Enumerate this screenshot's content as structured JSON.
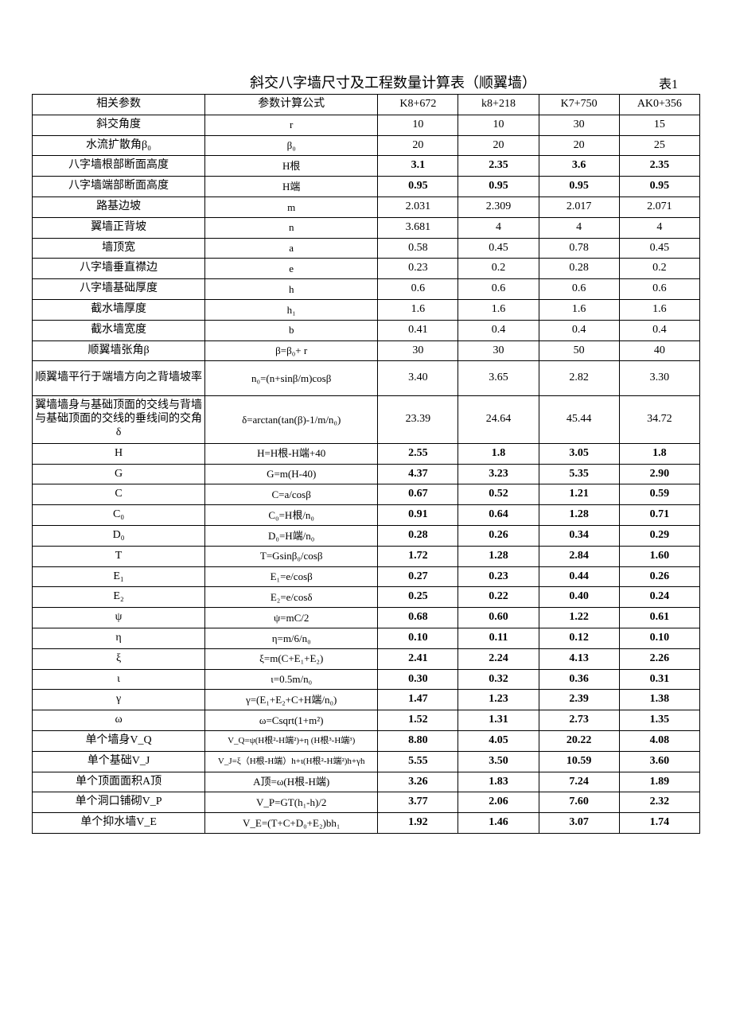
{
  "title": "斜交八字墙尺寸及工程数量计算表（顺翼墙）",
  "tableLabel": "表1",
  "header": {
    "c0": "相关参数",
    "c1": "参数计算公式",
    "c2": "K8+672",
    "c3": "k8+218",
    "c4": "K7+750",
    "c5": "AK0+356"
  },
  "rows": [
    {
      "p": "斜交角度",
      "f": "r",
      "v": [
        "10",
        "10",
        "30",
        "15"
      ],
      "bold": false
    },
    {
      "p": "水流扩散角β₀",
      "f": "β₀",
      "v": [
        "20",
        "20",
        "20",
        "25"
      ],
      "bold": false
    },
    {
      "p": "八字墙根部断面高度",
      "f": "H根",
      "v": [
        "3.1",
        "2.35",
        "3.6",
        "2.35"
      ],
      "bold": true
    },
    {
      "p": "八字墙端部断面高度",
      "f": "H端",
      "v": [
        "0.95",
        "0.95",
        "0.95",
        "0.95"
      ],
      "bold": true
    },
    {
      "p": "路基边坡",
      "f": "m",
      "v": [
        "2.031",
        "2.309",
        "2.017",
        "2.071"
      ],
      "bold": false
    },
    {
      "p": "翼墙正背坡",
      "f": "n",
      "v": [
        "3.681",
        "4",
        "4",
        "4"
      ],
      "bold": false
    },
    {
      "p": "墙顶宽",
      "f": "a",
      "v": [
        "0.58",
        "0.45",
        "0.78",
        "0.45"
      ],
      "bold": false
    },
    {
      "p": "八字墙垂直襟边",
      "f": "e",
      "v": [
        "0.23",
        "0.2",
        "0.28",
        "0.2"
      ],
      "bold": false
    },
    {
      "p": "八字墙基础厚度",
      "f": "h",
      "v": [
        "0.6",
        "0.6",
        "0.6",
        "0.6"
      ],
      "bold": false
    },
    {
      "p": "截水墙厚度",
      "f": "h₁",
      "v": [
        "1.6",
        "1.6",
        "1.6",
        "1.6"
      ],
      "bold": false
    },
    {
      "p": "截水墙宽度",
      "f": "b",
      "v": [
        "0.41",
        "0.4",
        "0.4",
        "0.4"
      ],
      "bold": false
    },
    {
      "p": "顺翼墙张角β",
      "f": "β=β₀+ r",
      "v": [
        "30",
        "30",
        "50",
        "40"
      ],
      "bold": false
    },
    {
      "p": "顺翼墙平行于端墙方向之背墙坡率",
      "f": "n₀=(n+sinβ/m)cosβ",
      "v": [
        "3.40",
        "3.65",
        "2.82",
        "3.30"
      ],
      "bold": false,
      "h": "tall"
    },
    {
      "p": "翼墙墙身与基础顶面的交线与背墙与基础顶面的交线的垂线间的交角δ",
      "f": "δ=arctan(tan(β)-1/m/n₀)",
      "v": [
        "23.39",
        "24.64",
        "45.44",
        "34.72"
      ],
      "bold": false,
      "h": "xtall"
    },
    {
      "p": "H",
      "f": "H=H根-H端+40",
      "v": [
        "2.55",
        "1.8",
        "3.05",
        "1.8"
      ],
      "bold": true
    },
    {
      "p": "G",
      "f": "G=m(H-40)",
      "v": [
        "4.37",
        "3.23",
        "5.35",
        "2.90"
      ],
      "bold": true
    },
    {
      "p": "C",
      "f": "C=a/cosβ",
      "v": [
        "0.67",
        "0.52",
        "1.21",
        "0.59"
      ],
      "bold": true
    },
    {
      "p": "C₀",
      "f": "C₀=H根/n₀",
      "v": [
        "0.91",
        "0.64",
        "1.28",
        "0.71"
      ],
      "bold": true
    },
    {
      "p": "D₀",
      "f": "D₀=H端/n₀",
      "v": [
        "0.28",
        "0.26",
        "0.34",
        "0.29"
      ],
      "bold": true
    },
    {
      "p": "T",
      "f": "T=Gsinβ₀/cosβ",
      "v": [
        "1.72",
        "1.28",
        "2.84",
        "1.60"
      ],
      "bold": true
    },
    {
      "p": "E₁",
      "f": "E₁=e/cosβ",
      "v": [
        "0.27",
        "0.23",
        "0.44",
        "0.26"
      ],
      "bold": true
    },
    {
      "p": "E₂",
      "f": "E₂=e/cosδ",
      "v": [
        "0.25",
        "0.22",
        "0.40",
        "0.24"
      ],
      "bold": true
    },
    {
      "p": "ψ",
      "f": "ψ=mC/2",
      "v": [
        "0.68",
        "0.60",
        "1.22",
        "0.61"
      ],
      "bold": true
    },
    {
      "p": "η",
      "f": "η=m/6/n₀",
      "v": [
        "0.10",
        "0.11",
        "0.12",
        "0.10"
      ],
      "bold": true
    },
    {
      "p": "ξ",
      "f": "ξ=m(C+E₁+E₂)",
      "v": [
        "2.41",
        "2.24",
        "4.13",
        "2.26"
      ],
      "bold": true
    },
    {
      "p": "ι",
      "f": "ι=0.5m/n₀",
      "v": [
        "0.30",
        "0.32",
        "0.36",
        "0.31"
      ],
      "bold": true
    },
    {
      "p": "γ",
      "f": "γ=(E₁+E₂+C+H端/n₀)",
      "v": [
        "1.47",
        "1.23",
        "2.39",
        "1.38"
      ],
      "bold": true
    },
    {
      "p": "ω",
      "f": "ω=Csqrt(1+m²)",
      "v": [
        "1.52",
        "1.31",
        "2.73",
        "1.35"
      ],
      "bold": true
    },
    {
      "p": "单个墙身V_Q",
      "f": "V_Q=ψ(H根²-H端²)+η (H根³-H端³)",
      "v": [
        "8.80",
        "4.05",
        "20.22",
        "4.08"
      ],
      "bold": true,
      "sf": true
    },
    {
      "p": "单个基础V_J",
      "f": "V_J=ξ（H根-H端）h+ι(H根²-H端²)h+γh",
      "v": [
        "5.55",
        "3.50",
        "10.59",
        "3.60"
      ],
      "bold": true,
      "sf": true
    },
    {
      "p": "单个顶面面积A顶",
      "f": "A顶=ω(H根-H端)",
      "v": [
        "3.26",
        "1.83",
        "7.24",
        "1.89"
      ],
      "bold": true
    },
    {
      "p": "单个洞口铺砌V_P",
      "f": "V_P=GT(h₁-h)/2",
      "v": [
        "3.77",
        "2.06",
        "7.60",
        "2.32"
      ],
      "bold": true
    },
    {
      "p": "单个抑水墙V_E",
      "f": "V_E=(T+C+D₀+E₂)bh₁",
      "v": [
        "1.92",
        "1.46",
        "3.07",
        "1.74"
      ],
      "bold": true
    }
  ]
}
